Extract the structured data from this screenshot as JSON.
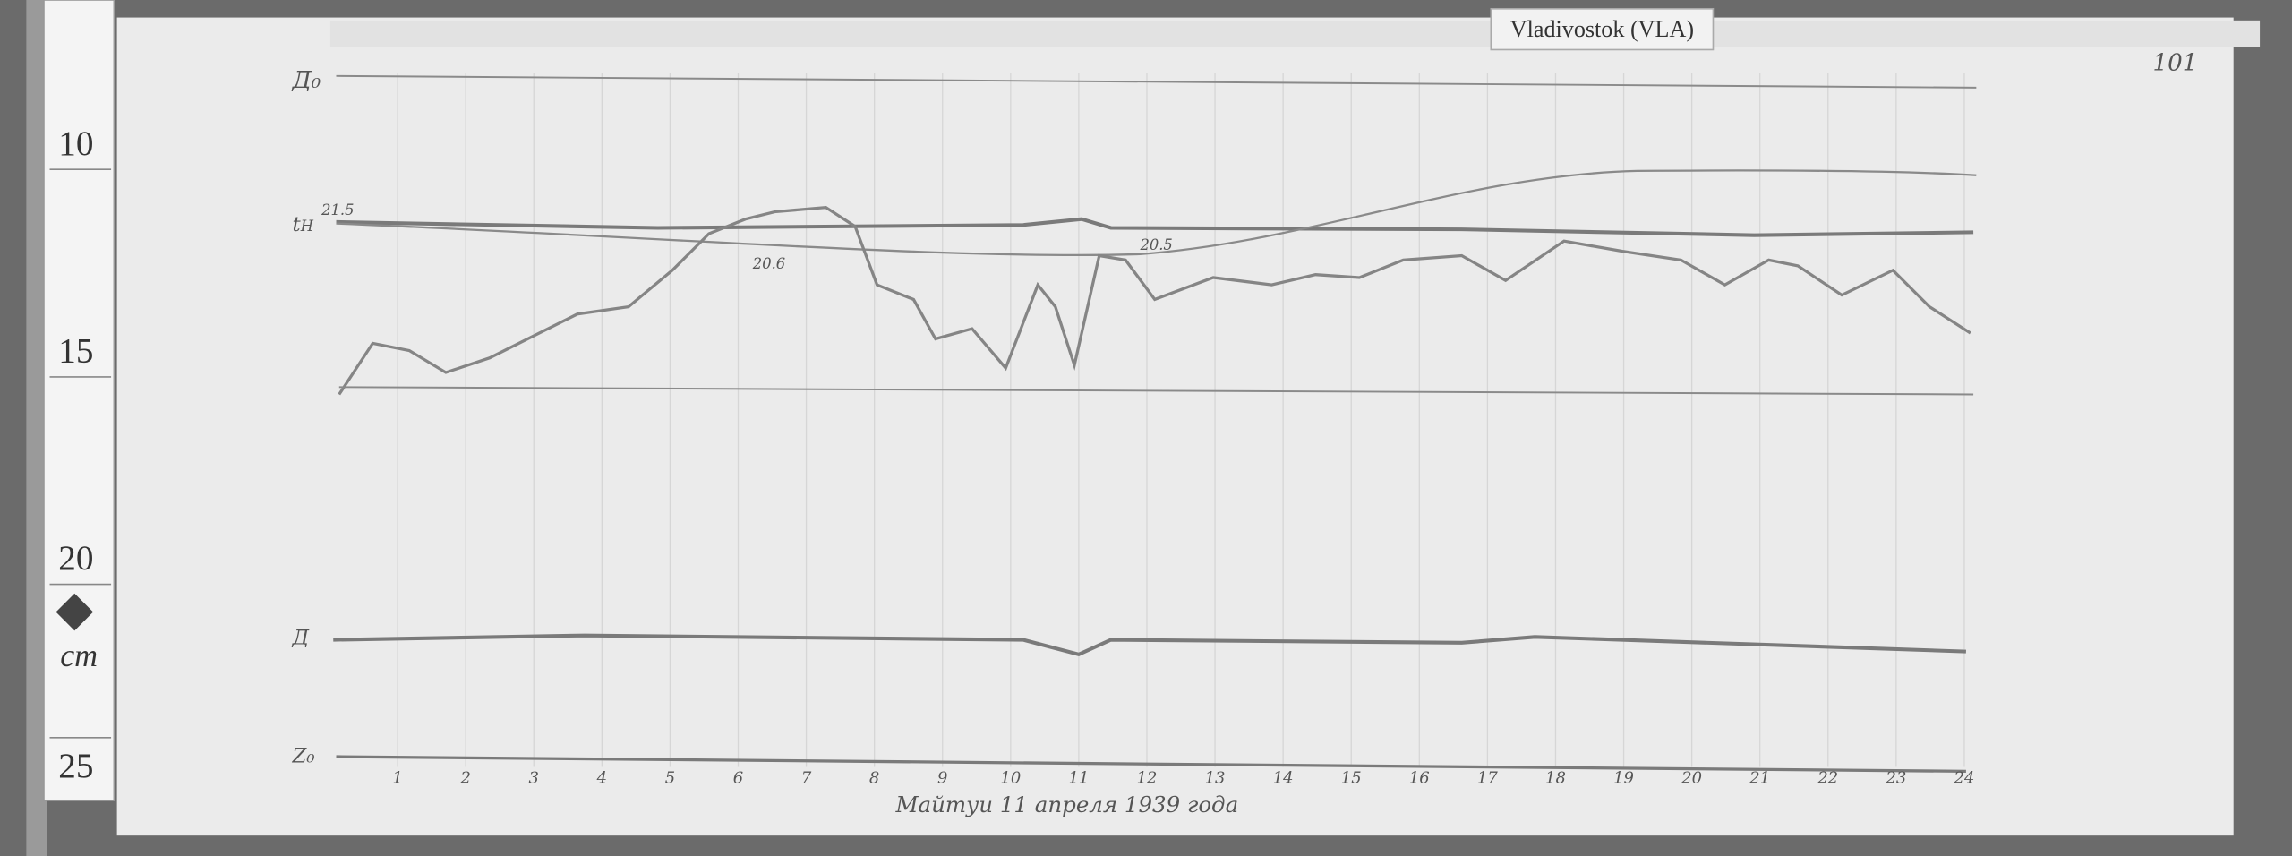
{
  "header": {
    "station": "Vladivostok (VLA)",
    "sheet_number": "101"
  },
  "ruler": {
    "marks": [
      "10",
      "15",
      "20",
      "25"
    ],
    "unit": "cm"
  },
  "annotations": {
    "start_value": "21.5",
    "value_a": "20.6",
    "value_b": "20.5"
  },
  "hours": [
    "1",
    "2",
    "3",
    "4",
    "5",
    "6",
    "7",
    "8",
    "9",
    "10",
    "11",
    "12",
    "13",
    "14",
    "15",
    "16",
    "17",
    "18",
    "19",
    "20",
    "21",
    "22",
    "23",
    "24"
  ],
  "caption": "Майтуи 11 апреля 1939 года"
}
